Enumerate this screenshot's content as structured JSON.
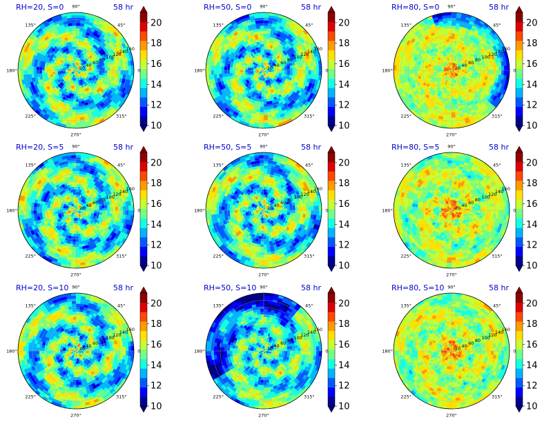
{
  "chart_data": {
    "type": "polar-contourf",
    "time_label": "58 hr",
    "panels": [
      {
        "title": "RH=20, S=0",
        "style": "spiral-mixed",
        "seed": 11
      },
      {
        "title": "RH=50, S=0",
        "style": "spiral-mixed",
        "seed": 23
      },
      {
        "title": "RH=80, S=0",
        "style": "moist-arc",
        "seed": 37
      },
      {
        "title": "RH=20, S=5",
        "style": "spiral-mixed",
        "seed": 41
      },
      {
        "title": "RH=50, S=5",
        "style": "spiral-mixed",
        "seed": 53
      },
      {
        "title": "RH=80, S=5",
        "style": "moist",
        "seed": 67
      },
      {
        "title": "RH=20, S=10",
        "style": "spiral-mixed",
        "seed": 71
      },
      {
        "title": "RH=50, S=10",
        "style": "dry-arc",
        "seed": 83
      },
      {
        "title": "RH=80, S=10",
        "style": "moist",
        "seed": 97
      }
    ],
    "theta_ticks": [
      "0°",
      "45°",
      "90°",
      "135°",
      "180°",
      "225°",
      "270°",
      "315°"
    ],
    "r_ticks": [
      "20",
      "40",
      "60",
      "80",
      "100",
      "120",
      "140",
      "160"
    ],
    "r_max": 160,
    "colorbar": {
      "levels": [
        10,
        11,
        12,
        13,
        14,
        15,
        16,
        17,
        18,
        19,
        20,
        21
      ],
      "ticks": [
        "10",
        "12",
        "14",
        "16",
        "18",
        "20"
      ],
      "extend": "both",
      "colors": [
        "#00008f",
        "#0000ff",
        "#005aff",
        "#00b4ff",
        "#14ffe2",
        "#70ff87",
        "#c4ff33",
        "#ffe000",
        "#ff9a00",
        "#ff4800",
        "#e00000",
        "#8f0000"
      ],
      "under_color": "#00007f",
      "over_color": "#7f0000"
    }
  }
}
